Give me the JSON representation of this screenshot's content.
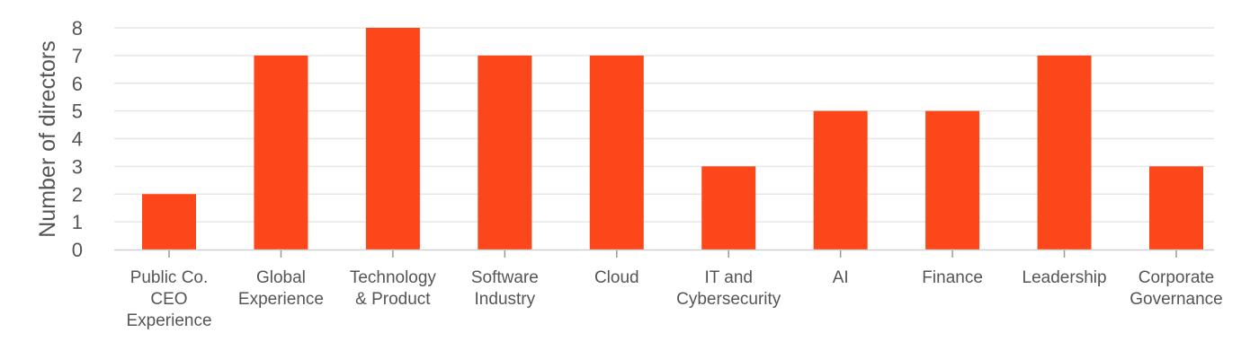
{
  "chart_data": {
    "type": "bar",
    "ylabel": "Number of directors",
    "ylim": [
      0,
      8
    ],
    "yticks": [
      0,
      1,
      2,
      3,
      4,
      5,
      6,
      7,
      8
    ],
    "grid": true,
    "legend": "none",
    "categories": [
      [
        "Public Co.",
        "CEO",
        "Experience"
      ],
      [
        "Global",
        "Experience"
      ],
      [
        "Technology",
        "& Product"
      ],
      [
        "Software",
        "Industry"
      ],
      [
        "Cloud"
      ],
      [
        "IT and",
        "Cybersecurity"
      ],
      [
        "AI"
      ],
      [
        "Finance"
      ],
      [
        "Leadership"
      ],
      [
        "Corporate",
        "Governance"
      ]
    ],
    "values": [
      2,
      7,
      8,
      7,
      7,
      3,
      5,
      5,
      7,
      3
    ],
    "bar_color": "#fc471a"
  }
}
